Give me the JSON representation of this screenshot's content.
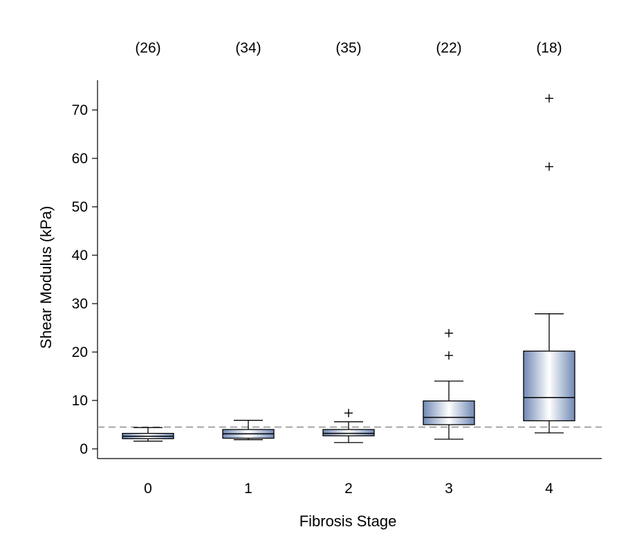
{
  "chart_data": {
    "type": "box",
    "title": "",
    "xlabel": "Fibrosis Stage",
    "ylabel": "Shear Modulus (kPa)",
    "ylim": [
      -2,
      76
    ],
    "yticks": [
      0,
      10,
      20,
      30,
      40,
      50,
      60,
      70
    ],
    "categories": [
      "0",
      "1",
      "2",
      "3",
      "4"
    ],
    "counts": [
      "(26)",
      "(34)",
      "(35)",
      "(22)",
      "(18)"
    ],
    "reference_line": {
      "y": 4.5,
      "style": "dashed"
    },
    "boxes": [
      {
        "category": "0",
        "whisker_low": 1.6,
        "q1": 2.1,
        "median": 2.6,
        "q3": 3.2,
        "whisker_high": 4.4,
        "outliers": []
      },
      {
        "category": "1",
        "whisker_low": 1.9,
        "q1": 2.2,
        "median": 3.1,
        "q3": 4.0,
        "whisker_high": 5.9,
        "outliers": []
      },
      {
        "category": "2",
        "whisker_low": 1.3,
        "q1": 2.7,
        "median": 3.2,
        "q3": 4.0,
        "whisker_high": 5.6,
        "outliers": [
          7.4
        ]
      },
      {
        "category": "3",
        "whisker_low": 2.0,
        "q1": 5.0,
        "median": 6.5,
        "q3": 9.9,
        "whisker_high": 14.0,
        "outliers": [
          19.3,
          23.9
        ]
      },
      {
        "category": "4",
        "whisker_low": 3.3,
        "q1": 5.8,
        "median": 10.6,
        "q3": 20.2,
        "whisker_high": 27.9,
        "outliers": [
          58.3,
          72.4
        ]
      }
    ],
    "colors": {
      "box_edge": "#7189b5",
      "box_center": "#ffffff",
      "line": "#000000",
      "reference": "#8c8c8c"
    },
    "grid": false
  }
}
